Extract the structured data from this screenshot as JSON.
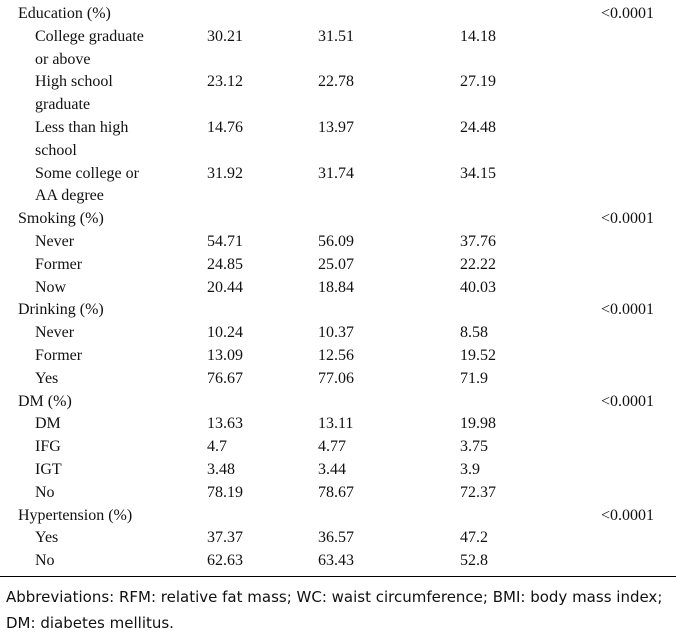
{
  "rows": [
    {
      "label": "Education (%)",
      "p": "<0.0001"
    },
    {
      "label": "College graduate",
      "sub": true,
      "v1": "30.21",
      "v2": "31.51",
      "v3": "14.18"
    },
    {
      "label": "or above",
      "sub": true
    },
    {
      "label": "High school",
      "sub": true,
      "v1": "23.12",
      "v2": "22.78",
      "v3": "27.19"
    },
    {
      "label": "graduate",
      "sub": true
    },
    {
      "label": "Less than high",
      "sub": true,
      "v1": "14.76",
      "v2": "13.97",
      "v3": "24.48"
    },
    {
      "label": "school",
      "sub": true
    },
    {
      "label": "Some college or",
      "sub": true,
      "v1": "31.92",
      "v2": "31.74",
      "v3": "34.15"
    },
    {
      "label": "AA degree",
      "sub": true
    },
    {
      "label": "Smoking (%)",
      "p": "<0.0001"
    },
    {
      "label": "Never",
      "sub": true,
      "v1": "54.71",
      "v2": "56.09",
      "v3": "37.76"
    },
    {
      "label": "Former",
      "sub": true,
      "v1": "24.85",
      "v2": "25.07",
      "v3": "22.22"
    },
    {
      "label": "Now",
      "sub": true,
      "v1": "20.44",
      "v2": "18.84",
      "v3": "40.03"
    },
    {
      "label": "Drinking (%)",
      "p": "<0.0001"
    },
    {
      "label": "Never",
      "sub": true,
      "v1": "10.24",
      "v2": "10.37",
      "v3": "8.58"
    },
    {
      "label": "Former",
      "sub": true,
      "v1": "13.09",
      "v2": "12.56",
      "v3": "19.52"
    },
    {
      "label": "Yes",
      "sub": true,
      "v1": "76.67",
      "v2": "77.06",
      "v3": "71.9"
    },
    {
      "label": "DM (%)",
      "p": "<0.0001"
    },
    {
      "label": "DM",
      "sub": true,
      "v1": "13.63",
      "v2": "13.11",
      "v3": "19.98"
    },
    {
      "label": "IFG",
      "sub": true,
      "v1": "4.7",
      "v2": "4.77",
      "v3": "3.75"
    },
    {
      "label": "IGT",
      "sub": true,
      "v1": "3.48",
      "v2": "3.44",
      "v3": "3.9"
    },
    {
      "label": "No",
      "sub": true,
      "v1": "78.19",
      "v2": "78.67",
      "v3": "72.37"
    },
    {
      "label": "Hypertension (%)",
      "p": "<0.0001"
    },
    {
      "label": "Yes",
      "sub": true,
      "v1": "37.37",
      "v2": "36.57",
      "v3": "47.2"
    },
    {
      "label": "No",
      "sub": true,
      "v1": "62.63",
      "v2": "63.43",
      "v3": "52.8"
    }
  ],
  "footnote": "Abbreviations: RFM: relative fat mass; WC: waist circumference; BMI: body mass index; DM: diabetes mellitus."
}
